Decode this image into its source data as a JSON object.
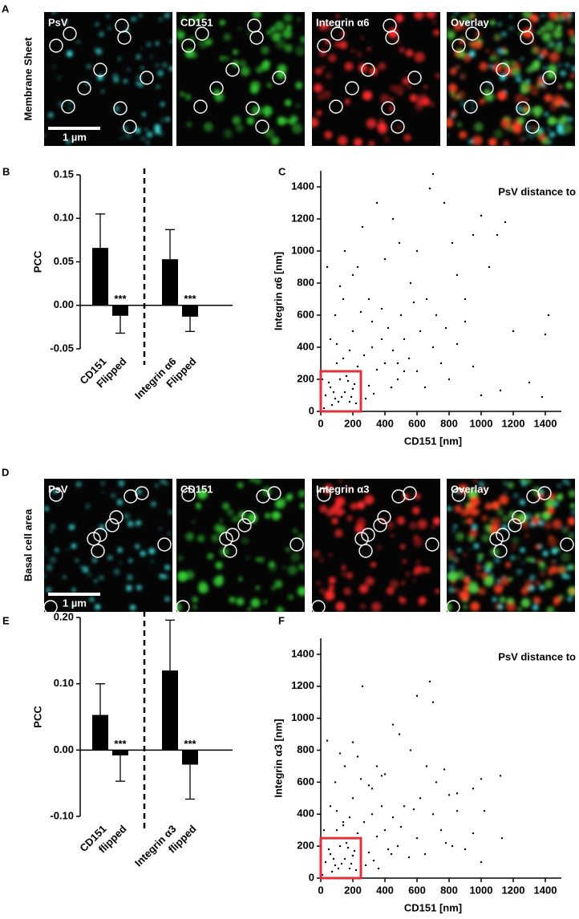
{
  "panels": {
    "A": {
      "letter": "A",
      "side_label": "Membrane Sheet",
      "channels": [
        "PsV",
        "CD151",
        "Integrin α6",
        "Overlay"
      ],
      "scale_bar": "1 µm"
    },
    "D": {
      "letter": "D",
      "side_label": "Basal cell area",
      "channels": [
        "PsV",
        "CD151",
        "Integrin α3",
        "Overlay"
      ],
      "scale_bar": "1 µm"
    }
  },
  "chart_data": [
    {
      "type": "bar",
      "panel_label": "B",
      "ylabel": "PCC",
      "categories": [
        "CD151",
        "Flipped",
        "Integrin α6",
        "Flipped"
      ],
      "values": [
        0.066,
        -0.012,
        0.053,
        -0.013
      ],
      "errors": [
        0.039,
        0.02,
        0.034,
        0.017
      ],
      "significance": [
        null,
        "***",
        null,
        "***"
      ],
      "color": "#000000",
      "ylim": [
        -0.05,
        0.15
      ],
      "yticks": [
        -0.05,
        {
          "value": 0,
          "label": "0.00"
        },
        0.05,
        {
          "value": 0.1,
          "label": "0.10"
        },
        0.15
      ]
    },
    {
      "type": "scatter",
      "panel_label": "C",
      "title": "PsV distance to",
      "xlabel": "CD151 [nm]",
      "ylabel": "Integrin α6 [nm]",
      "color": "#000000",
      "xlim": [
        0,
        1500
      ],
      "ylim": [
        0,
        1500
      ],
      "xticks": [
        0,
        200,
        400,
        600,
        800,
        1000,
        1200,
        1400
      ],
      "yticks": [
        0,
        200,
        400,
        600,
        800,
        1000,
        1200,
        1400
      ],
      "highlight": {
        "x": [
          0,
          250
        ],
        "y": [
          0,
          250
        ],
        "color": "#e0303a"
      },
      "x": [
        30,
        60,
        90,
        120,
        150,
        180,
        210,
        40,
        70,
        100,
        130,
        160,
        200,
        230,
        50,
        80,
        110,
        140,
        170,
        190,
        220,
        250,
        270,
        300,
        320,
        350,
        380,
        400,
        420,
        450,
        480,
        500,
        520,
        550,
        580,
        600,
        620,
        650,
        700,
        720,
        750,
        780,
        800,
        850,
        900,
        950,
        1000,
        1050,
        1100,
        1150,
        1200,
        1300,
        1400,
        1420,
        1380,
        60,
        90,
        120,
        40,
        150,
        200,
        260,
        300,
        350,
        400,
        450,
        490,
        600,
        680,
        700,
        770,
        850,
        950,
        200,
        250,
        180,
        100,
        320,
        380,
        140,
        230,
        560,
        660,
        820,
        1120,
        1000,
        900,
        480,
        520,
        440,
        20,
        10,
        280,
        330
      ],
      "values": [
        100,
        150,
        80,
        200,
        120,
        60,
        170,
        250,
        40,
        300,
        90,
        220,
        140,
        280,
        180,
        120,
        60,
        330,
        190,
        90,
        50,
        210,
        350,
        160,
        400,
        260,
        450,
        300,
        520,
        380,
        200,
        600,
        450,
        330,
        680,
        250,
        500,
        150,
        400,
        600,
        300,
        520,
        200,
        420,
        700,
        280,
        1220,
        900,
        1100,
        1180,
        500,
        180,
        480,
        600,
        90,
        450,
        600,
        780,
        900,
        1000,
        850,
        1150,
        700,
        1300,
        950,
        1200,
        1050,
        1000,
        1390,
        1480,
        1300,
        850,
        1100,
        500,
        620,
        380,
        420,
        560,
        640,
        700,
        900,
        800,
        700,
        1050,
        130,
        100,
        560,
        300,
        250,
        150,
        20,
        200,
        80,
        110
      ]
    },
    {
      "type": "bar",
      "panel_label": "E",
      "ylabel": "PCC",
      "categories": [
        "CD151",
        "flipped",
        "Integrin α3",
        "flipped"
      ],
      "values": [
        0.053,
        -0.008,
        0.12,
        -0.022
      ],
      "errors": [
        0.047,
        0.039,
        0.076,
        0.052
      ],
      "significance": [
        null,
        "***",
        null,
        "***"
      ],
      "color": "#000000",
      "ylim": [
        -0.1,
        0.2
      ],
      "yticks": [
        {
          "value": -0.1,
          "label": "-0.10"
        },
        {
          "value": 0,
          "label": "0.00"
        },
        {
          "value": 0.1,
          "label": "0.10"
        },
        {
          "value": 0.2,
          "label": "0.20"
        }
      ]
    },
    {
      "type": "scatter",
      "panel_label": "F",
      "title": "PsV distance to",
      "xlabel": "CD151 [nm]",
      "ylabel": "Integrin α3 [nm]",
      "color": "#000000",
      "xlim": [
        0,
        1500
      ],
      "ylim": [
        0,
        1500
      ],
      "xticks": [
        0,
        200,
        400,
        600,
        800,
        1000,
        1200,
        1400
      ],
      "yticks": [
        0,
        200,
        400,
        600,
        800,
        1000,
        1200,
        1400
      ],
      "highlight": {
        "x": [
          0,
          250
        ],
        "y": [
          0,
          250
        ],
        "color": "#e0303a"
      },
      "x": [
        30,
        60,
        90,
        120,
        150,
        180,
        210,
        40,
        70,
        100,
        130,
        160,
        200,
        230,
        50,
        80,
        110,
        140,
        170,
        190,
        220,
        250,
        270,
        300,
        320,
        350,
        380,
        400,
        420,
        450,
        480,
        500,
        520,
        550,
        580,
        600,
        620,
        650,
        700,
        720,
        750,
        780,
        800,
        850,
        900,
        950,
        1000,
        1020,
        1120,
        1130,
        1000,
        60,
        90,
        120,
        40,
        150,
        200,
        260,
        300,
        350,
        400,
        450,
        490,
        600,
        680,
        700,
        770,
        850,
        950,
        200,
        250,
        180,
        100,
        320,
        380,
        140,
        230,
        560,
        660,
        820,
        10,
        20,
        280,
        330,
        440,
        360
      ],
      "values": [
        100,
        150,
        80,
        200,
        120,
        60,
        170,
        250,
        40,
        300,
        90,
        220,
        140,
        280,
        180,
        120,
        60,
        330,
        190,
        90,
        50,
        210,
        350,
        160,
        400,
        260,
        450,
        300,
        180,
        380,
        200,
        320,
        450,
        130,
        430,
        250,
        500,
        150,
        400,
        600,
        300,
        220,
        520,
        420,
        180,
        280,
        620,
        420,
        640,
        250,
        100,
        450,
        600,
        780,
        860,
        700,
        850,
        1200,
        580,
        700,
        650,
        960,
        900,
        1140,
        1230,
        1100,
        680,
        530,
        560,
        500,
        620,
        380,
        420,
        560,
        640,
        350,
        760,
        800,
        700,
        200,
        20,
        300,
        80,
        110,
        150,
        60
      ]
    }
  ]
}
